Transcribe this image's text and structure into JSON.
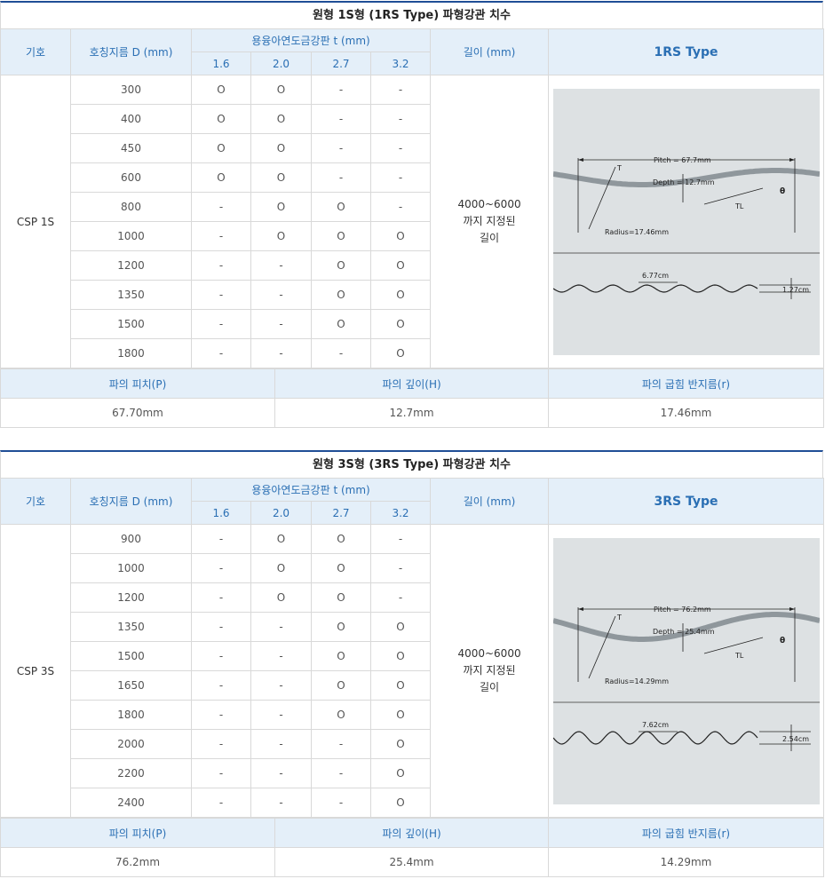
{
  "tables": [
    {
      "caption": "원형 1S형 (1RS Type) 파형강관 치수",
      "headers": {
        "symbol": "기호",
        "diameter": "호칭지름 D (mm)",
        "thickness": "용융아연도금강판 t (mm)",
        "thickness_cols": [
          "1.6",
          "2.0",
          "2.7",
          "3.2"
        ],
        "length": "길이 (mm)",
        "type": "1RS Type"
      },
      "symbol": "CSP 1S",
      "length_value": "4000~6000\n까지 지정된\n길이",
      "rows": [
        {
          "d": "300",
          "t": [
            "O",
            "O",
            "-",
            "-"
          ]
        },
        {
          "d": "400",
          "t": [
            "O",
            "O",
            "-",
            "-"
          ]
        },
        {
          "d": "450",
          "t": [
            "O",
            "O",
            "-",
            "-"
          ]
        },
        {
          "d": "600",
          "t": [
            "O",
            "O",
            "-",
            "-"
          ]
        },
        {
          "d": "800",
          "t": [
            "-",
            "O",
            "O",
            "-"
          ]
        },
        {
          "d": "1000",
          "t": [
            "-",
            "O",
            "O",
            "O"
          ]
        },
        {
          "d": "1200",
          "t": [
            "-",
            "-",
            "O",
            "O"
          ]
        },
        {
          "d": "1350",
          "t": [
            "-",
            "-",
            "O",
            "O"
          ]
        },
        {
          "d": "1500",
          "t": [
            "-",
            "-",
            "O",
            "O"
          ]
        },
        {
          "d": "1800",
          "t": [
            "-",
            "-",
            "-",
            "O"
          ]
        }
      ],
      "figure": {
        "pitch": "Pitch = 67.7mm",
        "depth": "Depth = 12.7mm",
        "radius": "Radius=17.46mm",
        "t": "T",
        "tl": "TL",
        "theta": "θ",
        "bottom_pitch": "6.77cm",
        "bottom_depth": "1.27cm"
      },
      "footer_headers": [
        "파의 피치(P)",
        "파의 깊이(H)",
        "파의 굽힘 반지름(r)"
      ],
      "footer_values": [
        "67.70mm",
        "12.7mm",
        "17.46mm"
      ]
    },
    {
      "caption": "원형 3S형 (3RS Type) 파형강관 치수",
      "headers": {
        "symbol": "기호",
        "diameter": "호칭지름 D (mm)",
        "thickness": "용융아연도금강판 t (mm)",
        "thickness_cols": [
          "1.6",
          "2.0",
          "2.7",
          "3.2"
        ],
        "length": "길이 (mm)",
        "type": "3RS Type"
      },
      "symbol": "CSP 3S",
      "length_value": "4000~6000\n까지 지정된\n길이",
      "rows": [
        {
          "d": "900",
          "t": [
            "-",
            "O",
            "O",
            "-"
          ]
        },
        {
          "d": "1000",
          "t": [
            "-",
            "O",
            "O",
            "-"
          ]
        },
        {
          "d": "1200",
          "t": [
            "-",
            "O",
            "O",
            "-"
          ]
        },
        {
          "d": "1350",
          "t": [
            "-",
            "-",
            "O",
            "O"
          ]
        },
        {
          "d": "1500",
          "t": [
            "-",
            "-",
            "O",
            "O"
          ]
        },
        {
          "d": "1650",
          "t": [
            "-",
            "-",
            "O",
            "O"
          ]
        },
        {
          "d": "1800",
          "t": [
            "-",
            "-",
            "O",
            "O"
          ]
        },
        {
          "d": "2000",
          "t": [
            "-",
            "-",
            "-",
            "O"
          ]
        },
        {
          "d": "2200",
          "t": [
            "-",
            "-",
            "-",
            "O"
          ]
        },
        {
          "d": "2400",
          "t": [
            "-",
            "-",
            "-",
            "O"
          ]
        }
      ],
      "figure": {
        "pitch": "Pitch = 76.2mm",
        "depth": "Depth = 25.4mm",
        "radius": "Radius=14.29mm",
        "t": "T",
        "tl": "TL",
        "theta": "θ",
        "bottom_pitch": "7.62cm",
        "bottom_depth": "2.54cm"
      },
      "footer_headers": [
        "파의 피치(P)",
        "파의 깊이(H)",
        "파의 굽힘 반지름(r)"
      ],
      "footer_values": [
        "76.2mm",
        "25.4mm",
        "14.29mm"
      ]
    }
  ]
}
